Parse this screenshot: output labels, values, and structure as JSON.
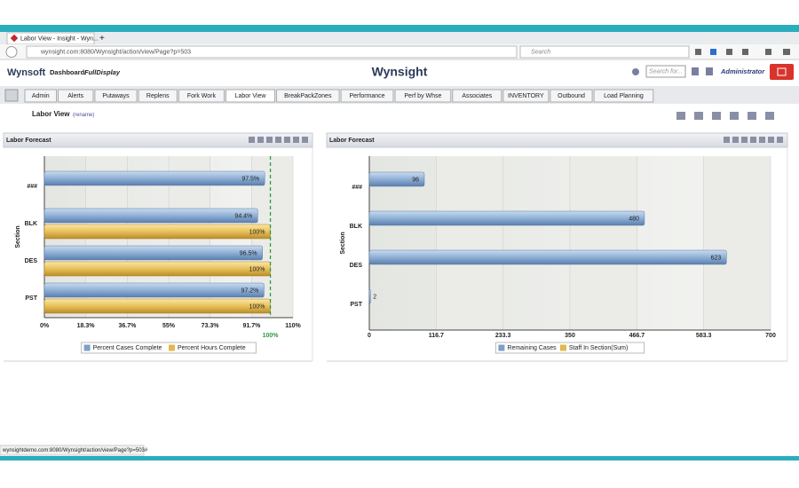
{
  "browser": {
    "tab_title": "Labor View - Insight - Wyn...",
    "url": "wynsight.com:8080/Wynsight/action/view/Page?p=503",
    "search_placeholder": "Search",
    "status_url": "wynsightdemo.com:8080/Wynsight/action/view/Page?p=503#"
  },
  "header": {
    "logo": "Wynsoft",
    "dashboard_label": "Dashboard:",
    "dashboard_name": "FullDisplay",
    "product": "Wynsight",
    "search_placeholder": "Search for...",
    "user": "Administrator"
  },
  "tabs": [
    "Admin",
    "Alerts",
    "Putaways",
    "Replens",
    "Fork Work",
    "Labor View",
    "BreakPackZones",
    "Performance",
    "Perf by Whse",
    "Associates",
    "INVENTORY",
    "Outbound",
    "Load Planning"
  ],
  "active_tab": 5,
  "page": {
    "title": "Labor View",
    "rename": "(rename)"
  },
  "chart_data": [
    {
      "type": "bar",
      "orientation": "horizontal",
      "title": "Labor Forecast",
      "ylabel": "Section",
      "categories": [
        "###",
        "BLK",
        "DES",
        "PST"
      ],
      "series": [
        {
          "name": "Percent Cases Complete",
          "color": "#7f9fc6",
          "values": [
            97.5,
            94.4,
            96.5,
            97.2
          ],
          "value_labels": [
            "97.5%",
            "94.4%",
            "96.5%",
            "97.2%"
          ]
        },
        {
          "name": "Percent Hours Complete",
          "color": "#e2b84e",
          "values": [
            null,
            100,
            100,
            100
          ],
          "value_labels": [
            null,
            "100%",
            "100%",
            "100%"
          ]
        }
      ],
      "xlim": [
        0,
        110
      ],
      "xticks": [
        {
          "value": 0,
          "label": "0%"
        },
        {
          "value": 18.3,
          "label": "18.3%"
        },
        {
          "value": 36.7,
          "label": "36.7%"
        },
        {
          "value": 55,
          "label": "55%"
        },
        {
          "value": 73.3,
          "label": "73.3%"
        },
        {
          "value": 91.7,
          "label": "91.7%"
        },
        {
          "value": 110,
          "label": "110%"
        }
      ],
      "reference_line": {
        "value": 100,
        "label": "100%",
        "color": "#2e9a3e"
      },
      "grid": true
    },
    {
      "type": "bar",
      "orientation": "horizontal",
      "title": "Labor Forecast",
      "ylabel": "Section",
      "categories": [
        "###",
        "BLK",
        "DES",
        "PST"
      ],
      "series": [
        {
          "name": "Remaining Cases",
          "color": "#7f9fc6",
          "values": [
            96,
            480,
            623,
            2
          ]
        },
        {
          "name": "Staff In Section(Sum)",
          "color": "#e2b84e",
          "values": [
            null,
            null,
            null,
            null
          ]
        }
      ],
      "xlim": [
        0,
        700
      ],
      "xticks": [
        0,
        116.7,
        233.3,
        350,
        466.7,
        583.3,
        700
      ],
      "grid": true
    }
  ]
}
